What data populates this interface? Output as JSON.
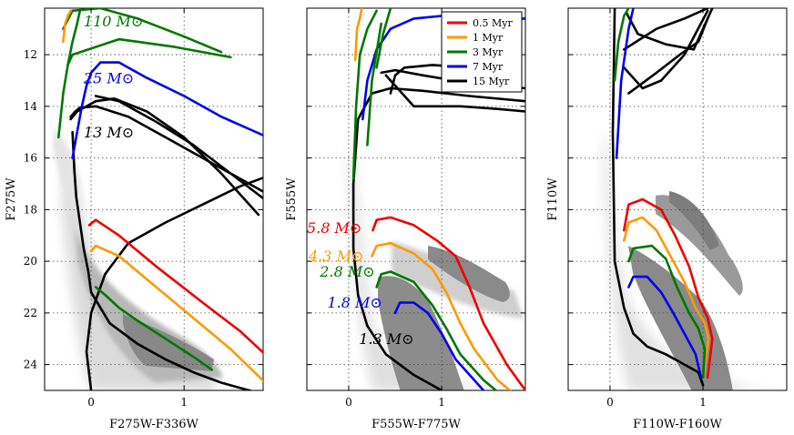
{
  "chart_data": [
    {
      "type": "line",
      "xlabel": "F275W-F336W",
      "ylabel": "F275W",
      "xlim": [
        -0.5,
        1.85
      ],
      "ylim": [
        25,
        10.2
      ],
      "xticks": [
        0,
        1
      ],
      "yticks": [
        12,
        14,
        16,
        18,
        20,
        22,
        24
      ],
      "show_y_tick_labels": true,
      "mass_labels": [
        {
          "text": "110 M⊙",
          "x": -0.08,
          "y": 10.9,
          "color": "#007700"
        },
        {
          "text": "25 M⊙",
          "x": -0.08,
          "y": 13.1,
          "color": "#0000ee"
        },
        {
          "text": "13 M⊙",
          "x": -0.08,
          "y": 15.2,
          "color": "#000000"
        }
      ],
      "series": [
        {
          "name": "15 Myr",
          "color": "#000000",
          "width": 2.6,
          "x": [
            0.0,
            -0.05,
            0.0,
            0.15,
            0.4,
            0.8,
            1.2,
            1.6,
            1.9
          ],
          "y": [
            25.0,
            23.5,
            22.0,
            20.5,
            19.3,
            18.5,
            17.8,
            17.1,
            16.7
          ]
        },
        {
          "name": "15 Myr",
          "color": "#000000",
          "width": 2.6,
          "x": [
            -0.2,
            -0.18,
            -0.16,
            -0.12,
            -0.08,
            -0.03,
            0.0,
            0.2,
            0.5,
            0.8,
            1.1,
            1.4,
            1.7,
            1.9
          ],
          "y": [
            15.0,
            16.5,
            17.5,
            18.5,
            19.5,
            20.4,
            21.2,
            22.4,
            23.2,
            23.8,
            24.3,
            24.7,
            25.0,
            25.2
          ]
        },
        {
          "name": "15 Myr",
          "color": "#000000",
          "width": 2.6,
          "x": [
            -0.22,
            -0.17,
            -0.12,
            0.05,
            0.4,
            0.8,
            1.2,
            1.6,
            1.95
          ],
          "y": [
            14.4,
            14.2,
            14.05,
            14.0,
            14.4,
            15.2,
            16.0,
            16.8,
            17.5
          ]
        },
        {
          "name": "15 Myr",
          "color": "#000000",
          "width": 2.6,
          "x": [
            0.05,
            0.3,
            0.7,
            1.1,
            1.5,
            1.9
          ],
          "y": [
            13.6,
            13.8,
            14.6,
            15.5,
            16.6,
            17.7
          ]
        },
        {
          "name": "15 Myr",
          "color": "#000000",
          "width": 2.6,
          "x": [
            -0.22,
            -0.15,
            0.05,
            0.25,
            0.6,
            1.0,
            1.4,
            1.8
          ],
          "y": [
            14.5,
            14.2,
            13.8,
            13.7,
            14.2,
            15.2,
            16.6,
            18.2
          ]
        },
        {
          "name": "7 Myr",
          "color": "#0000ee",
          "width": 2.6,
          "x": [
            -0.2,
            -0.15,
            -0.1,
            -0.05,
            0.0,
            0.1,
            0.3,
            0.6,
            1.0,
            1.4,
            1.9
          ],
          "y": [
            16.0,
            15.0,
            14.0,
            13.2,
            12.7,
            12.3,
            12.3,
            12.9,
            13.6,
            14.4,
            15.2
          ]
        },
        {
          "name": "3 Myr",
          "color": "#007700",
          "width": 2.6,
          "x": [
            -0.35,
            -0.3,
            -0.25,
            -0.2,
            -0.15,
            -0.12
          ],
          "y": [
            15.2,
            13.5,
            12.4,
            11.5,
            10.8,
            10.3
          ]
        },
        {
          "name": "3 Myr",
          "color": "#007700",
          "width": 2.6,
          "x": [
            -0.25,
            -0.2,
            0.3,
            0.9,
            1.5
          ],
          "y": [
            12.4,
            12.0,
            11.4,
            11.7,
            12.1
          ]
        },
        {
          "name": "3 Myr",
          "color": "#007700",
          "width": 2.6,
          "x": [
            -0.3,
            -0.2,
            0.1,
            0.5,
            1.0,
            1.4
          ],
          "y": [
            11.0,
            10.3,
            10.2,
            10.6,
            11.3,
            11.9
          ]
        },
        {
          "name": "3 Myr",
          "color": "#007700",
          "width": 2.6,
          "x": [
            0.05,
            0.15,
            0.3,
            0.5,
            0.8,
            1.1,
            1.3
          ],
          "y": [
            21.0,
            21.3,
            21.8,
            22.3,
            23.0,
            23.7,
            24.2
          ]
        },
        {
          "name": "1 Myr",
          "color": "#ff9900",
          "width": 2.6,
          "x": [
            -0.3,
            -0.28,
            -0.25,
            -0.22
          ],
          "y": [
            11.5,
            10.8,
            10.5,
            10.3
          ]
        },
        {
          "name": "1 Myr",
          "color": "#ff9900",
          "width": 2.6,
          "x": [
            0.0,
            0.05,
            0.3,
            0.7,
            1.1,
            1.5,
            1.9
          ],
          "y": [
            19.6,
            19.4,
            19.8,
            21.0,
            22.2,
            23.4,
            24.8
          ]
        },
        {
          "name": "0.5 Myr",
          "color": "#ee0000",
          "width": 2.6,
          "x": [
            -0.02,
            0.05,
            0.3,
            0.7,
            1.2,
            1.6,
            1.9
          ],
          "y": [
            18.6,
            18.4,
            19.0,
            20.2,
            21.6,
            22.7,
            23.7
          ]
        }
      ]
    },
    {
      "type": "line",
      "xlabel": "F555W-F775W",
      "ylabel": "F555W",
      "xlim": [
        -0.45,
        1.9
      ],
      "ylim": [
        25,
        10.2
      ],
      "xticks": [
        0,
        1
      ],
      "yticks": [
        12,
        14,
        16,
        18,
        20,
        22,
        24
      ],
      "show_y_tick_labels": false,
      "mass_labels": [
        {
          "text": "5.8 M⊙",
          "x": -0.45,
          "y": 18.9,
          "color": "#ee0000"
        },
        {
          "text": "4.3 M⊙",
          "x": -0.43,
          "y": 20.0,
          "color": "#ff9900"
        },
        {
          "text": "2.8 M⊙",
          "x": -0.31,
          "y": 20.6,
          "color": "#007700"
        },
        {
          "text": "1.8 M⊙",
          "x": -0.23,
          "y": 21.8,
          "color": "#0000ee"
        },
        {
          "text": "1.3 M⊙",
          "x": 0.11,
          "y": 23.2,
          "color": "#000000"
        }
      ],
      "legend": {
        "position": "top-right",
        "entries": [
          {
            "label": "0.5 Myr",
            "color": "#ee0000"
          },
          {
            "label": "1 Myr",
            "color": "#ff9900"
          },
          {
            "label": "3 Myr",
            "color": "#007700"
          },
          {
            "label": "7 Myr",
            "color": "#0000ee"
          },
          {
            "label": "15 Myr",
            "color": "#000000"
          }
        ]
      },
      "series": [
        {
          "name": "15 Myr",
          "color": "#000000",
          "width": 2.6,
          "x": [
            0.05,
            0.05,
            0.1,
            0.2,
            0.4,
            0.7,
            1.0
          ],
          "y": [
            17.0,
            19.5,
            21.3,
            22.5,
            23.6,
            24.4,
            25.0
          ]
        },
        {
          "name": "15 Myr",
          "color": "#000000",
          "width": 2.6,
          "x": [
            0.05,
            0.1,
            0.25,
            0.45,
            0.8,
            1.3,
            1.9
          ],
          "y": [
            17.0,
            14.5,
            13.5,
            13.3,
            13.4,
            13.6,
            13.8
          ]
        },
        {
          "name": "15 Myr",
          "color": "#000000",
          "width": 2.6,
          "x": [
            0.35,
            0.5,
            0.8,
            1.3,
            1.9
          ],
          "y": [
            12.7,
            12.6,
            12.8,
            13.1,
            13.3
          ]
        },
        {
          "name": "15 Myr",
          "color": "#000000",
          "width": 2.6,
          "x": [
            0.4,
            0.7,
            1.2,
            1.6,
            1.9
          ],
          "y": [
            12.8,
            14.0,
            14.0,
            14.1,
            14.2
          ]
        },
        {
          "name": "15 Myr",
          "color": "#000000",
          "width": 2.6,
          "x": [
            0.45,
            0.5,
            0.6,
            0.9,
            1.3,
            1.8
          ],
          "y": [
            13.5,
            12.8,
            12.5,
            12.4,
            12.5,
            12.7
          ]
        },
        {
          "name": "7 Myr",
          "color": "#0000ee",
          "width": 2.6,
          "x": [
            0.15,
            0.2,
            0.3,
            0.45,
            0.7,
            1.0,
            1.3,
            1.7,
            1.9
          ],
          "y": [
            14.5,
            13.0,
            11.8,
            11.0,
            10.6,
            10.5,
            10.5,
            10.6,
            10.6
          ]
        },
        {
          "name": "3 Myr",
          "color": "#007700",
          "width": 2.6,
          "x": [
            0.05,
            0.08,
            0.12,
            0.2,
            0.3
          ],
          "y": [
            16.8,
            14.0,
            12.0,
            11.0,
            10.3
          ]
        },
        {
          "name": "3 Myr",
          "color": "#007700",
          "width": 2.6,
          "x": [
            0.2,
            0.25,
            0.35
          ],
          "y": [
            15.5,
            13.0,
            10.8
          ]
        },
        {
          "name": "3 Myr",
          "color": "#007700",
          "width": 2.6,
          "x": [
            0.3,
            0.37,
            0.45
          ],
          "y": [
            12.5,
            11.2,
            10.2
          ]
        },
        {
          "name": "1 Myr",
          "color": "#ff9900",
          "width": 2.6,
          "x": [
            0.07,
            0.09,
            0.12,
            0.14
          ],
          "y": [
            12.2,
            11.0,
            10.6,
            10.2
          ]
        },
        {
          "name": "0.5 Myr",
          "color": "#ee0000",
          "width": 2.6,
          "x": [
            0.26,
            0.3,
            0.45,
            0.7,
            0.95,
            1.15,
            1.3,
            1.45,
            1.7,
            1.9
          ],
          "y": [
            18.8,
            18.4,
            18.3,
            18.6,
            19.2,
            19.8,
            21.0,
            22.4,
            24.0,
            25.0
          ]
        },
        {
          "name": "1 Myr",
          "color": "#ff9900",
          "width": 2.6,
          "x": [
            0.25,
            0.3,
            0.45,
            0.7,
            0.9,
            1.05,
            1.2,
            1.35,
            1.6,
            1.8
          ],
          "y": [
            19.8,
            19.4,
            19.3,
            19.7,
            20.3,
            21.2,
            22.4,
            23.4,
            24.6,
            25.2
          ]
        },
        {
          "name": "3 Myr",
          "color": "#007700",
          "width": 2.6,
          "x": [
            0.3,
            0.35,
            0.45,
            0.7,
            0.9,
            1.05,
            1.2,
            1.45,
            1.65
          ],
          "y": [
            21.0,
            20.5,
            20.4,
            20.8,
            21.7,
            22.6,
            23.6,
            24.6,
            25.2
          ]
        },
        {
          "name": "7 Myr",
          "color": "#0000ee",
          "width": 2.6,
          "x": [
            0.5,
            0.55,
            0.7,
            0.85,
            1.0,
            1.15,
            1.35,
            1.5
          ],
          "y": [
            22.0,
            21.6,
            21.6,
            22.0,
            22.8,
            23.8,
            24.6,
            25.2
          ]
        }
      ]
    },
    {
      "type": "line",
      "xlabel": "F110W-F160W",
      "ylabel": "F110W",
      "xlim": [
        -0.45,
        1.9
      ],
      "ylim": [
        25,
        10.2
      ],
      "xticks": [
        0,
        1
      ],
      "yticks": [
        12,
        14,
        16,
        18,
        20,
        22,
        24
      ],
      "show_y_tick_labels": false,
      "mass_labels": [],
      "series": [
        {
          "name": "15 Myr",
          "color": "#000000",
          "width": 2.6,
          "x": [
            0.05,
            0.03,
            0.05,
            0.15,
            0.25,
            0.4,
            0.6,
            0.8,
            0.95,
            1.0
          ],
          "y": [
            10.2,
            15.0,
            20.0,
            21.8,
            22.8,
            23.3,
            23.6,
            24.0,
            24.3,
            24.8
          ]
        },
        {
          "name": "15 Myr",
          "color": "#000000",
          "width": 2.6,
          "x": [
            0.2,
            0.5,
            0.75,
            0.95,
            1.05
          ],
          "y": [
            13.5,
            12.7,
            12.0,
            11.5,
            10.6
          ]
        },
        {
          "name": "15 Myr",
          "color": "#000000",
          "width": 2.6,
          "x": [
            0.15,
            0.5,
            0.8,
            1.05
          ],
          "y": [
            11.8,
            11.0,
            10.6,
            10.2
          ]
        },
        {
          "name": "15 Myr",
          "color": "#000000",
          "width": 2.6,
          "x": [
            0.15,
            0.35,
            0.55,
            0.8,
            1.05
          ],
          "y": [
            12.5,
            13.3,
            13.0,
            12.0,
            10.3
          ]
        },
        {
          "name": "15 Myr",
          "color": "#000000",
          "width": 2.6,
          "x": [
            0.18,
            0.3,
            0.6,
            0.9,
            1.1
          ],
          "y": [
            10.4,
            11.2,
            11.6,
            11.8,
            10.2
          ]
        },
        {
          "name": "7 Myr",
          "color": "#0000ee",
          "width": 2.6,
          "x": [
            0.07,
            0.12,
            0.2,
            0.25
          ],
          "y": [
            16.0,
            13.0,
            11.0,
            10.2
          ]
        },
        {
          "name": "3 Myr",
          "color": "#007700",
          "width": 2.6,
          "x": [
            0.05,
            0.09,
            0.15,
            0.2
          ],
          "y": [
            13.0,
            11.5,
            10.5,
            10.2
          ]
        },
        {
          "name": "0.5 Myr",
          "color": "#ee0000",
          "width": 2.6,
          "x": [
            0.15,
            0.2,
            0.35,
            0.55,
            0.7,
            0.85,
            0.95,
            1.05,
            1.1,
            1.05
          ],
          "y": [
            18.8,
            17.8,
            17.6,
            18.0,
            19.0,
            20.2,
            21.4,
            22.2,
            23.0,
            24.5
          ]
        },
        {
          "name": "1 Myr",
          "color": "#ff9900",
          "width": 2.6,
          "x": [
            0.15,
            0.2,
            0.35,
            0.5,
            0.65,
            0.8,
            0.92,
            1.02,
            1.06,
            1.0
          ],
          "y": [
            19.2,
            18.5,
            18.3,
            18.8,
            19.8,
            20.8,
            21.8,
            22.4,
            23.0,
            24.5
          ]
        },
        {
          "name": "3 Myr",
          "color": "#007700",
          "width": 2.6,
          "x": [
            0.2,
            0.25,
            0.45,
            0.6,
            0.72,
            0.85,
            0.95,
            1.02,
            1.0
          ],
          "y": [
            20.0,
            19.5,
            19.4,
            19.9,
            21.0,
            22.0,
            22.6,
            23.4,
            24.5
          ]
        },
        {
          "name": "7 Myr",
          "color": "#0000ee",
          "width": 2.6,
          "x": [
            0.2,
            0.25,
            0.4,
            0.55,
            0.68,
            0.8,
            0.92,
            0.98
          ],
          "y": [
            21.0,
            20.6,
            20.6,
            21.2,
            22.0,
            22.8,
            23.6,
            24.5
          ]
        }
      ]
    }
  ]
}
